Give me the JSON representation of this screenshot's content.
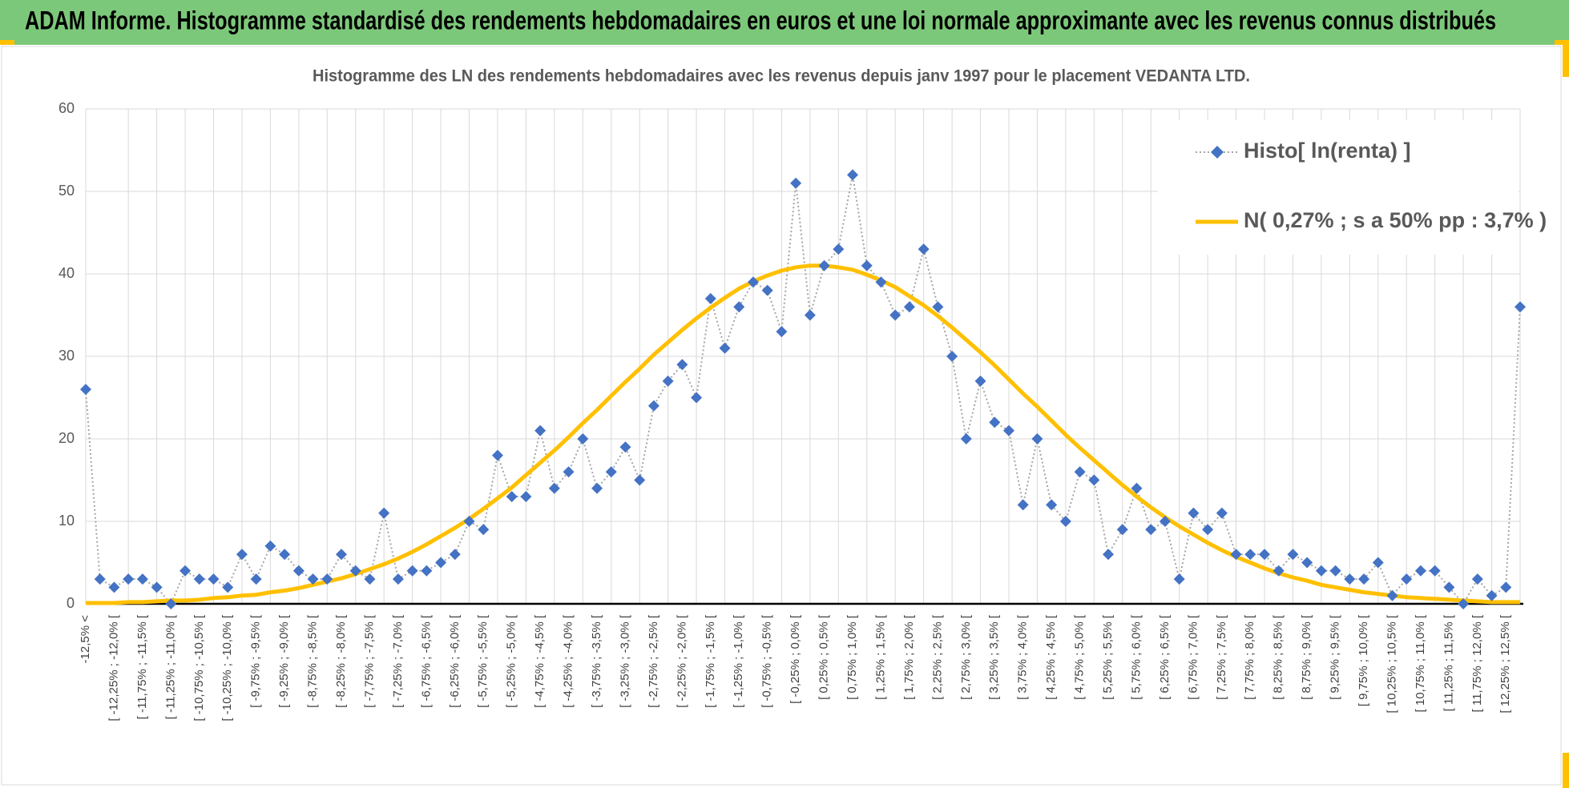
{
  "header": {
    "title": "ADAM Informe. Histogramme standardisé des rendements hebdomadaires en euros et une loi normale approximante avec les revenus connus distribués"
  },
  "chart_data": {
    "type": "line",
    "title": "Histogramme des LN des rendements hebdomadaires avec les revenus depuis janv 1997 pour le placement VEDANTA LTD.",
    "categories": [
      "-12,5% <",
      null,
      "[ -12,25% ; -12,0% [",
      null,
      "[ -11,75% ; -11,5% [",
      null,
      "[ -11,25% ; -11,0% [",
      null,
      "[ -10,75% ; -10,5% [",
      null,
      "[ -10,25% ; -10,0% [",
      null,
      "[ -9,75% ; -9,5% [",
      null,
      "[ -9,25% ; -9,0% [",
      null,
      "[ -8,75% ; -8,5% [",
      null,
      "[ -8,25% ; -8,0% [",
      null,
      "[ -7,75% ; -7,5% [",
      null,
      "[ -7,25% ; -7,0% [",
      null,
      "[ -6,75% ; -6,5% [",
      null,
      "[ -6,25% ; -6,0% [",
      null,
      "[ -5,75% ; -5,5% [",
      null,
      "[ -5,25% ; -5,0% [",
      null,
      "[ -4,75% ; -4,5% [",
      null,
      "[ -4,25% ; -4,0% [",
      null,
      "[ -3,75% ; -3,5% [",
      null,
      "[ -3,25% ; -3,0% [",
      null,
      "[ -2,75% ; -2,5% [",
      null,
      "[ -2,25% ; -2,0% [",
      null,
      "[ -1,75% ; -1,5% [",
      null,
      "[ -1,25% ; -1,0% [",
      null,
      "[ -0,75% ; -0,5% [",
      null,
      "[ -0,25% ; 0,0% [",
      null,
      "[ 0,25% ; 0,5% [",
      null,
      "[ 0,75% ; 1,0% [",
      null,
      "[ 1,25% ; 1,5% [",
      null,
      "[ 1,75% ; 2,0% [",
      null,
      "[ 2,25% ; 2,5% [",
      null,
      "[ 2,75% ; 3,0% [",
      null,
      "[ 3,25% ; 3,5% [",
      null,
      "[ 3,75% ; 4,0% [",
      null,
      "[ 4,25% ; 4,5% [",
      null,
      "[ 4,75% ; 5,0% [",
      null,
      "[ 5,25% ; 5,5% [",
      null,
      "[ 5,75% ; 6,0% [",
      null,
      "[ 6,25% ; 6,5% [",
      null,
      "[ 6,75% ; 7,0% [",
      null,
      "[ 7,25% ; 7,5% [",
      null,
      "[ 7,75% ; 8,0% [",
      null,
      "[ 8,25% ; 8,5% [",
      null,
      "[ 8,75% ; 9,0% [",
      null,
      "[ 9,25% ; 9,5% [",
      null,
      "[ 9,75% ; 10,0% [",
      null,
      "[ 10,25% ; 10,5% [",
      null,
      "[ 10,75% ; 11,0% [",
      null,
      "[ 11,25% ; 11,5% [",
      null,
      "[ 11,75% ; 12,0% [",
      null,
      "[ 12,25% ; 12,5% [",
      null
    ],
    "series": [
      {
        "name": "Histo[ ln(renta) ]",
        "color": "#4472c4",
        "line_color": "#a6a6a6",
        "values": [
          26,
          3,
          2,
          3,
          3,
          2,
          0,
          4,
          3,
          3,
          2,
          6,
          3,
          7,
          6,
          4,
          3,
          3,
          6,
          4,
          3,
          11,
          3,
          4,
          4,
          5,
          6,
          10,
          9,
          18,
          13,
          13,
          21,
          14,
          16,
          20,
          14,
          16,
          19,
          15,
          24,
          27,
          29,
          25,
          37,
          31,
          36,
          39,
          38,
          33,
          51,
          35,
          41,
          43,
          52,
          41,
          39,
          35,
          36,
          43,
          36,
          30,
          20,
          27,
          22,
          21,
          12,
          20,
          12,
          10,
          16,
          15,
          6,
          9,
          14,
          9,
          10,
          3,
          11,
          9,
          11,
          6,
          6,
          6,
          4,
          6,
          5,
          4,
          4,
          3,
          3,
          5,
          1,
          3,
          4,
          4,
          2,
          0,
          3,
          1,
          2,
          36
        ]
      },
      {
        "name": "N( 0,27% ; s a 50% pp : 3,7% )",
        "color": "#ffc000",
        "values": [
          0.1,
          0.1,
          0.1,
          0.2,
          0.2,
          0.3,
          0.4,
          0.4,
          0.5,
          0.7,
          0.8,
          1.0,
          1.1,
          1.4,
          1.6,
          1.9,
          2.3,
          2.7,
          3.1,
          3.6,
          4.2,
          4.8,
          5.5,
          6.3,
          7.2,
          8.2,
          9.2,
          10.3,
          11.5,
          12.8,
          14.1,
          15.6,
          17.1,
          18.6,
          20.2,
          21.9,
          23.5,
          25.2,
          26.9,
          28.5,
          30.2,
          31.7,
          33.2,
          34.6,
          35.9,
          37.1,
          38.2,
          39.1,
          39.8,
          40.4,
          40.8,
          41.0,
          41.0,
          40.8,
          40.5,
          39.9,
          39.2,
          38.4,
          37.3,
          36.2,
          34.9,
          33.5,
          32.0,
          30.5,
          28.9,
          27.2,
          25.5,
          23.9,
          22.2,
          20.5,
          18.9,
          17.4,
          15.9,
          14.4,
          13.0,
          11.7,
          10.5,
          9.4,
          8.4,
          7.4,
          6.5,
          5.7,
          5.0,
          4.3,
          3.7,
          3.2,
          2.8,
          2.3,
          2.0,
          1.7,
          1.4,
          1.2,
          1.0,
          0.8,
          0.7,
          0.6,
          0.5,
          0.4,
          0.3,
          0.2,
          0.2,
          0.2
        ]
      }
    ],
    "ylim": [
      0,
      60
    ],
    "yticks": [
      0,
      10,
      20,
      30,
      40,
      50,
      60
    ],
    "grid": true,
    "legend": "top-right"
  }
}
